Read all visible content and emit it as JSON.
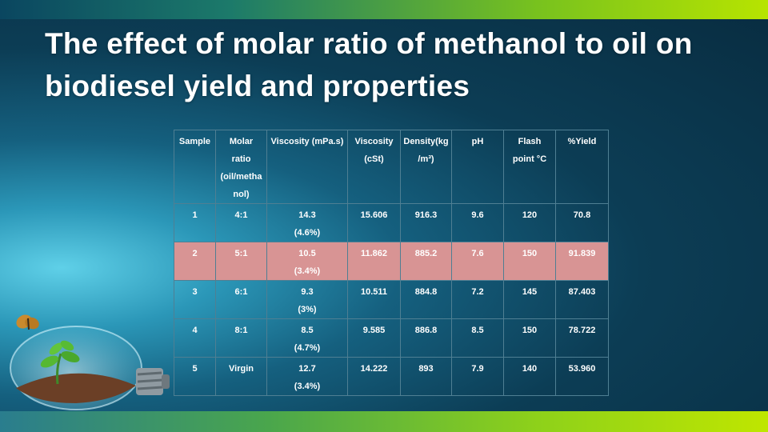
{
  "slide": {
    "title": "The effect of molar ratio of methanol to oil on biodiesel yield and properties"
  },
  "table": {
    "headers": [
      {
        "line1": "Sample",
        "line2": "",
        "line3": "",
        "line4": ""
      },
      {
        "line1": "Molar",
        "line2": "ratio",
        "line3": "(oil/metha",
        "line4": "nol)"
      },
      {
        "line1": "Viscosity (mPa.s)",
        "line2": "",
        "line3": "",
        "line4": ""
      },
      {
        "line1": "Viscosity",
        "line2": "(cSt)",
        "line3": "",
        "line4": ""
      },
      {
        "line1": "Density(kg",
        "line2": "/m³)",
        "line3": "",
        "line4": ""
      },
      {
        "line1": "pH",
        "line2": "",
        "line3": "",
        "line4": ""
      },
      {
        "line1": "Flash",
        "line2": "point  °C",
        "line3": "",
        "line4": ""
      },
      {
        "line1": "%Yield",
        "line2": "",
        "line3": "",
        "line4": ""
      }
    ],
    "rows": [
      {
        "sample": "1",
        "ratio": "4:1",
        "visc_mpas": "14.3",
        "visc_note": "(4.6%)",
        "visc_cst": "15.606",
        "density": "916.3",
        "ph": "9.6",
        "flash": "120",
        "yield": "70.8",
        "highlight": false
      },
      {
        "sample": "2",
        "ratio": "5:1",
        "visc_mpas": "10.5",
        "visc_note": "(3.4%)",
        "visc_cst": "11.862",
        "density": "885.2",
        "ph": "7.6",
        "flash": "150",
        "yield": "91.839",
        "highlight": true
      },
      {
        "sample": "3",
        "ratio": "6:1",
        "visc_mpas": "9.3",
        "visc_note": "(3%)",
        "visc_cst": "10.511",
        "density": "884.8",
        "ph": "7.2",
        "flash": "145",
        "yield": "87.403",
        "highlight": false
      },
      {
        "sample": "4",
        "ratio": "8:1",
        "visc_mpas": "8.5",
        "visc_note": "(4.7%)",
        "visc_cst": "9.585",
        "density": "886.8",
        "ph": "8.5",
        "flash": "150",
        "yield": "78.722",
        "highlight": false
      },
      {
        "sample": "5",
        "ratio": "Virgin",
        "visc_mpas": "12.7",
        "visc_note": "(3.4%)",
        "visc_cst": "14.222",
        "density": "893",
        "ph": "7.9",
        "flash": "140",
        "yield": "53.960",
        "highlight": false
      }
    ]
  },
  "colors": {
    "highlight_row": "#d89494",
    "top_bar_end": "#b7e400"
  },
  "decor": {
    "icons": [
      "butterfly-icon",
      "light-bulb-icon",
      "sprout-icon"
    ]
  }
}
